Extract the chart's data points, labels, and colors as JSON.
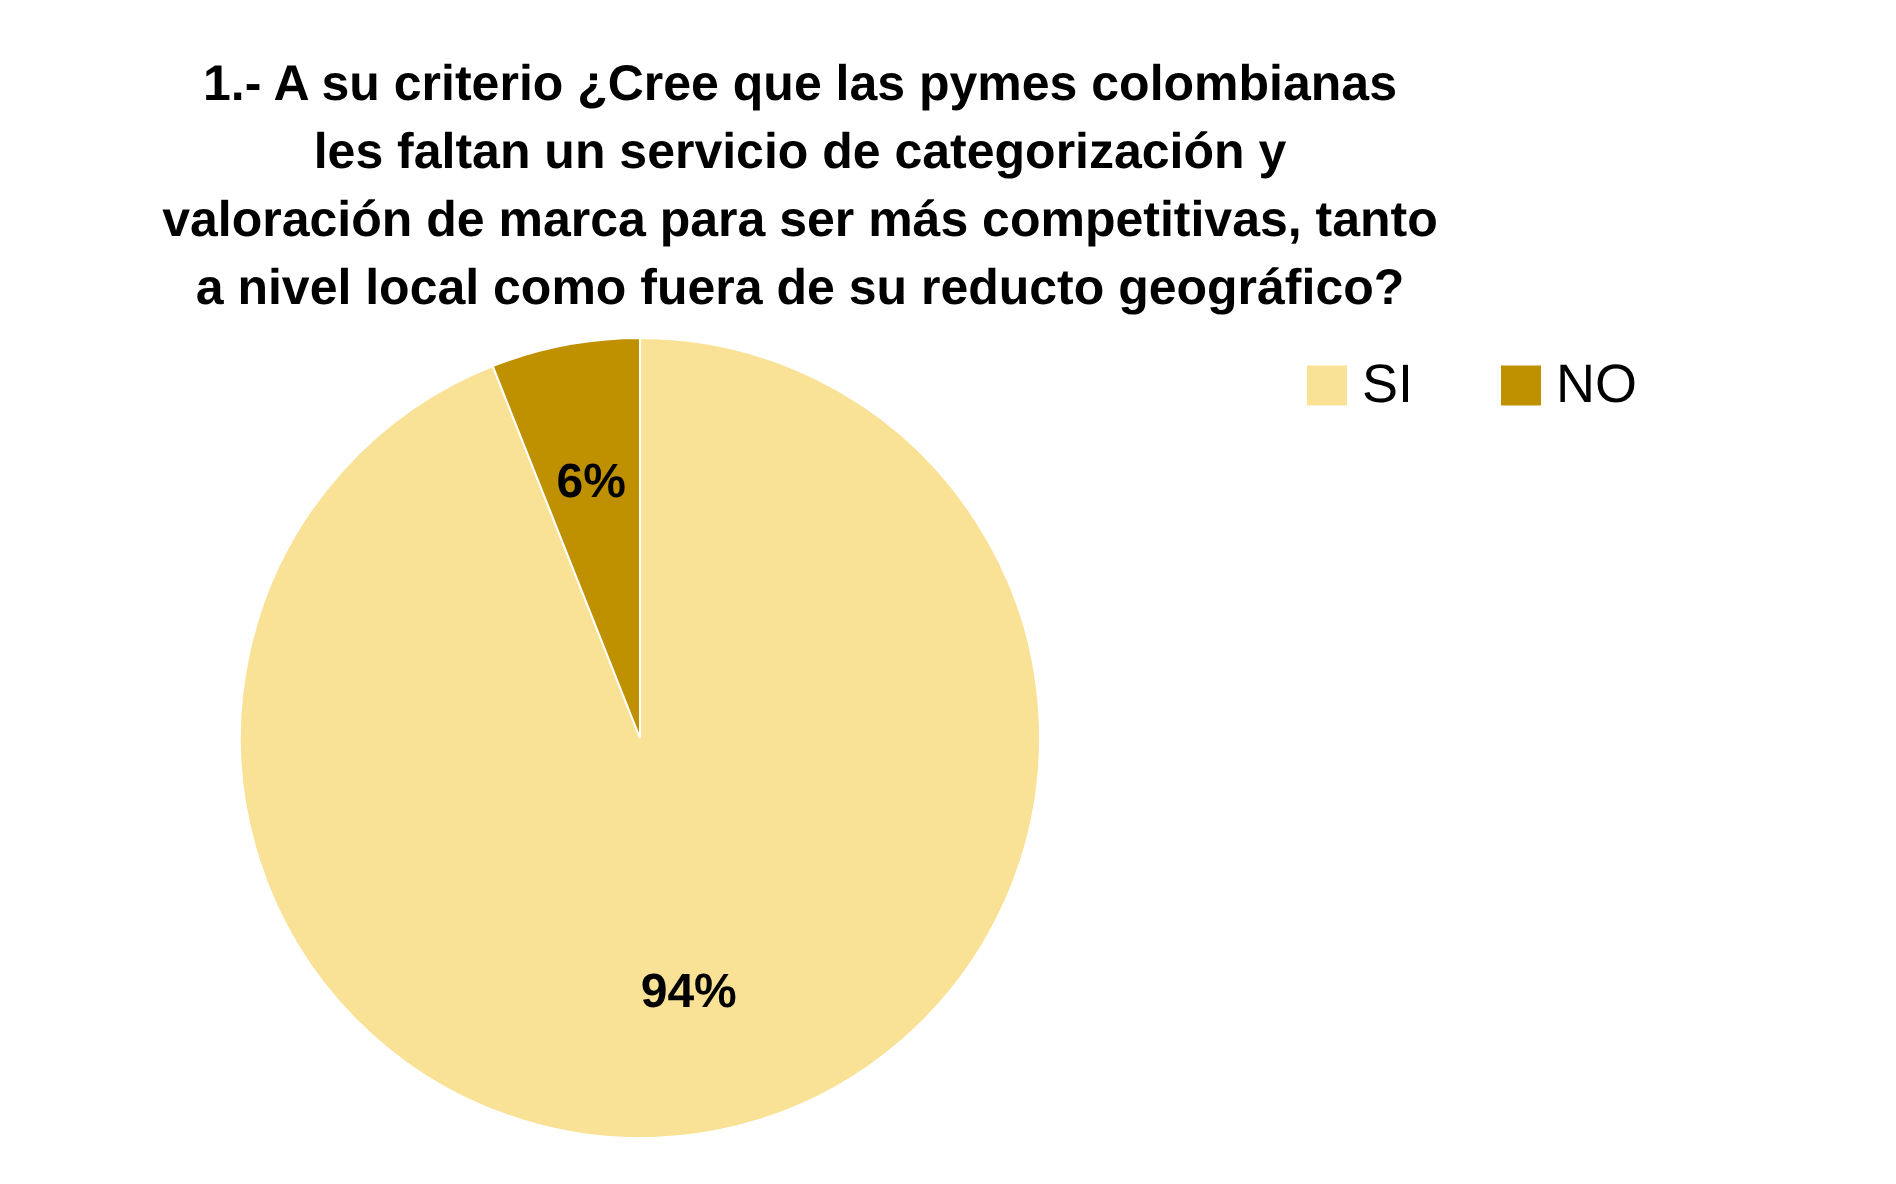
{
  "chart_data": {
    "type": "pie",
    "title": "1.- A su criterio ¿Cree que las pymes colombianas les faltan un servicio de categorización y valoración de marca para ser más competitivas, tanto a nivel local como fuera de su reducto geográfico?",
    "categories": [
      "SI",
      "NO"
    ],
    "values": [
      94,
      6
    ],
    "colors": [
      "#f9e196",
      "#bf9000"
    ],
    "value_labels": [
      "94%",
      "6%"
    ],
    "legend": "right"
  }
}
